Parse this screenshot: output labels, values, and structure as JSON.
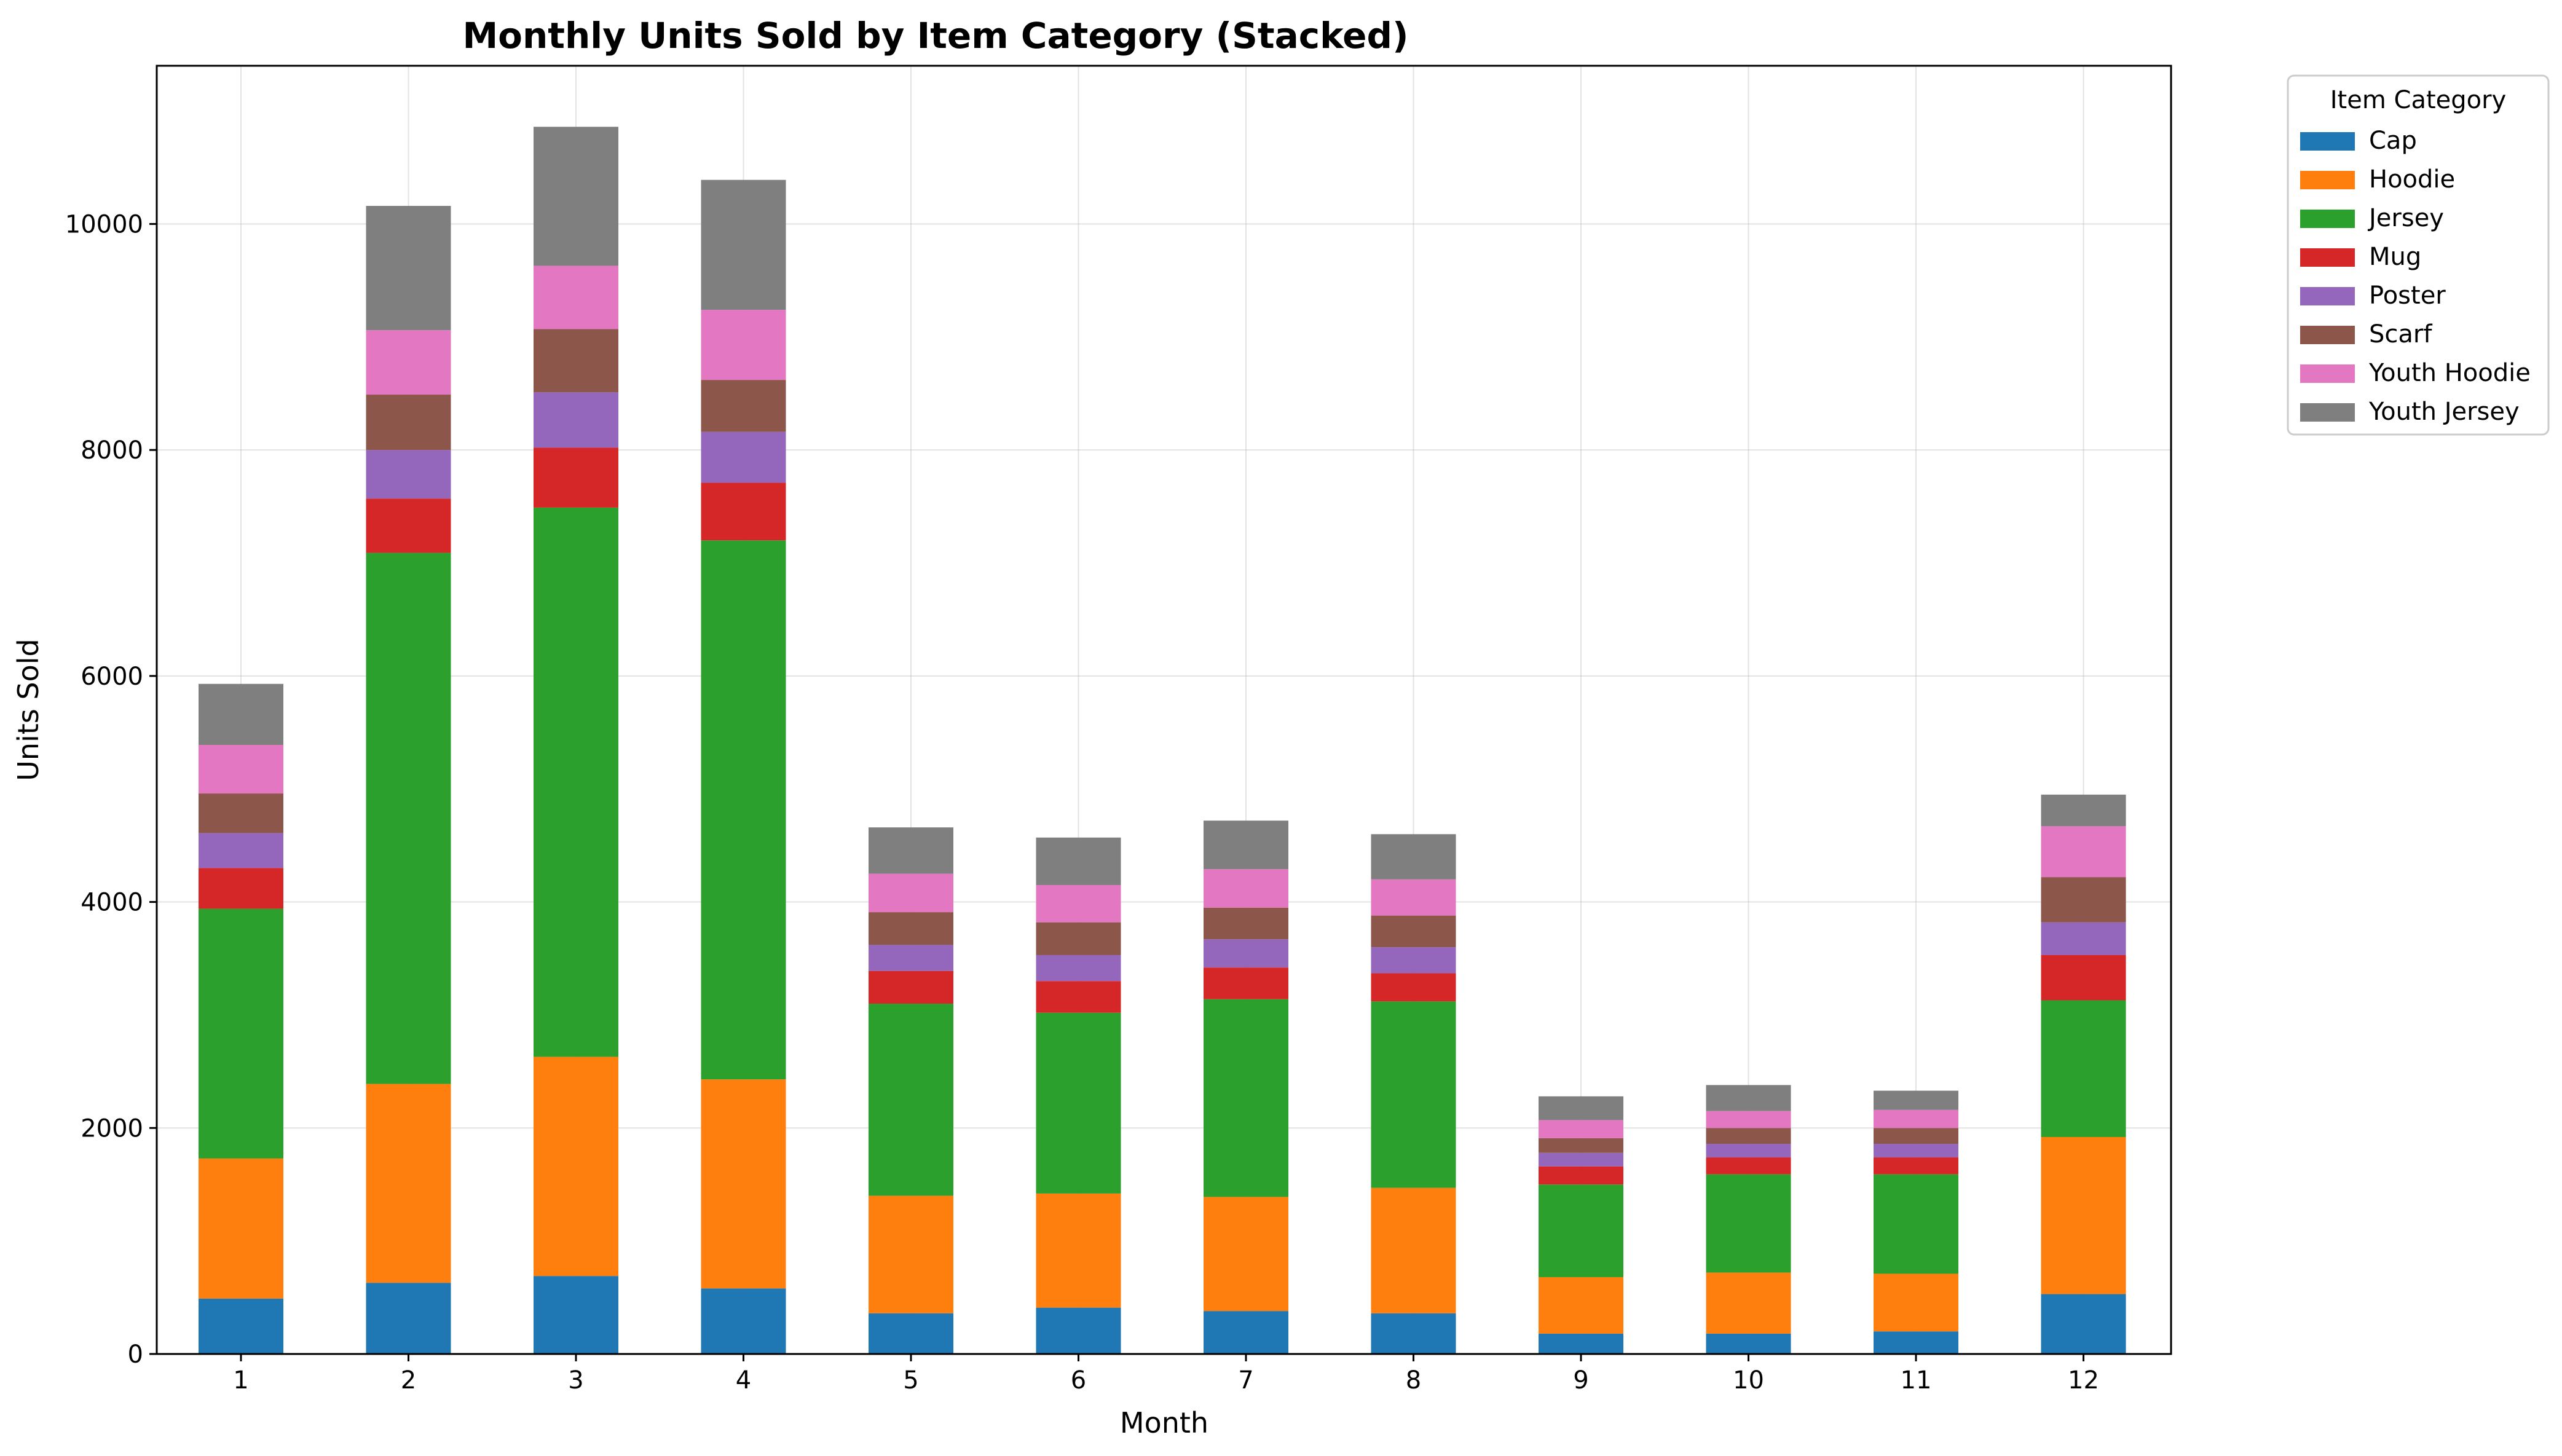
{
  "chart_data": {
    "type": "bar",
    "stacked": true,
    "title": "Monthly Units Sold by Item Category (Stacked)",
    "xlabel": "Month",
    "ylabel": "Units Sold",
    "categories": [
      "1",
      "2",
      "3",
      "4",
      "5",
      "6",
      "7",
      "8",
      "9",
      "10",
      "11",
      "12"
    ],
    "ylim": [
      0,
      11400
    ],
    "yticks": [
      0,
      2000,
      4000,
      6000,
      8000,
      10000
    ],
    "grid": true,
    "legend": {
      "title": "Item Category",
      "placement": "outside-top-right"
    },
    "series": [
      {
        "name": "Cap",
        "color": "#1f77b4",
        "values": [
          490,
          630,
          690,
          580,
          360,
          410,
          380,
          360,
          180,
          180,
          200,
          530
        ]
      },
      {
        "name": "Hoodie",
        "color": "#ff7f0e",
        "values": [
          1240,
          1760,
          1940,
          1850,
          1040,
          1010,
          1010,
          1110,
          500,
          540,
          510,
          1390
        ]
      },
      {
        "name": "Jersey",
        "color": "#2ca02c",
        "values": [
          2210,
          4700,
          4860,
          4770,
          1700,
          1600,
          1750,
          1650,
          820,
          870,
          880,
          1210
        ]
      },
      {
        "name": "Mug",
        "color": "#d62728",
        "values": [
          360,
          480,
          530,
          510,
          290,
          280,
          280,
          250,
          160,
          150,
          150,
          400
        ]
      },
      {
        "name": "Poster",
        "color": "#9467bd",
        "values": [
          310,
          430,
          490,
          450,
          230,
          230,
          250,
          230,
          120,
          120,
          120,
          290
        ]
      },
      {
        "name": "Scarf",
        "color": "#8c564b",
        "values": [
          350,
          490,
          560,
          460,
          290,
          290,
          280,
          280,
          130,
          140,
          140,
          400
        ]
      },
      {
        "name": "Youth Hoodie",
        "color": "#e377c2",
        "values": [
          430,
          570,
          560,
          620,
          340,
          330,
          340,
          320,
          160,
          150,
          160,
          450
        ]
      },
      {
        "name": "Youth Jersey",
        "color": "#7f7f7f",
        "values": [
          540,
          1100,
          1230,
          1150,
          410,
          420,
          430,
          400,
          210,
          230,
          170,
          280
        ]
      }
    ]
  }
}
